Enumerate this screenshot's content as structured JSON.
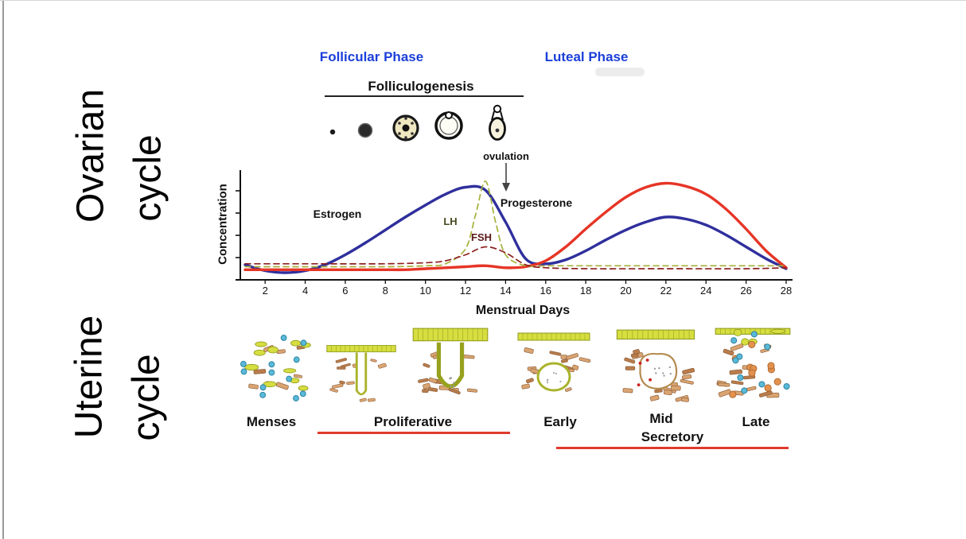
{
  "side_labels": {
    "ovarian_word1": "Ovarian",
    "ovarian_word2": "cycle",
    "uterine_word1": "Uterine",
    "uterine_word2": "cycle"
  },
  "phases": {
    "follicular": "Follicular Phase",
    "luteal": "Luteal Phase",
    "color": "#1b3fd9"
  },
  "folliculogenesis": {
    "title": "Folliculogenesis",
    "ovulation_label": "ovulation",
    "icons": [
      "primordial-follicle-icon",
      "primary-follicle-icon",
      "secondary-follicle-icon",
      "antral-follicle-icon",
      "ovulating-follicle-icon"
    ]
  },
  "chart": {
    "ylabel": "Concentration",
    "xlabel": "Menstrual Days",
    "labels": {
      "estrogen": "Estrogen",
      "lh": "LH",
      "fsh": "FSH",
      "progesterone": "Progesterone"
    }
  },
  "chart_data": {
    "type": "line",
    "xlabel": "Menstrual Days",
    "ylabel": "Concentration",
    "x_range": [
      1,
      28
    ],
    "x_ticks": [
      2,
      4,
      6,
      8,
      10,
      12,
      14,
      16,
      18,
      20,
      22,
      24,
      26,
      28
    ],
    "legend_position": "inline-labels",
    "grid": false,
    "series": [
      {
        "name": "Estrogen",
        "color": "#2f2f9d",
        "style": "solid",
        "x": [
          1,
          2,
          3,
          4,
          5,
          6,
          7,
          8,
          9,
          10,
          11,
          12,
          13,
          14,
          15,
          16,
          17,
          18,
          19,
          20,
          21,
          22,
          23,
          24,
          25,
          26,
          27,
          28
        ],
        "y": [
          12,
          6,
          4,
          6,
          12,
          22,
          34,
          47,
          60,
          72,
          83,
          90,
          87,
          55,
          18,
          13,
          17,
          26,
          37,
          47,
          55,
          60,
          58,
          52,
          42,
          30,
          18,
          8
        ]
      },
      {
        "name": "Progesterone",
        "color": "#e63526",
        "style": "solid",
        "x": [
          1,
          2,
          3,
          4,
          5,
          6,
          7,
          8,
          9,
          10,
          11,
          12,
          13,
          14,
          15,
          16,
          17,
          18,
          19,
          20,
          21,
          22,
          23,
          24,
          25,
          26,
          27,
          28
        ],
        "y": [
          7,
          7,
          7,
          7,
          7,
          7,
          7,
          7,
          7,
          8,
          9,
          10,
          11,
          9,
          10,
          16,
          30,
          48,
          65,
          80,
          90,
          94,
          91,
          83,
          68,
          48,
          26,
          9
        ]
      },
      {
        "name": "LH",
        "color": "#a6b13b",
        "style": "dashed",
        "x": [
          1,
          4,
          8,
          10,
          11,
          12,
          12.5,
          13,
          13.5,
          14,
          15,
          16,
          18,
          22,
          26,
          28
        ],
        "y": [
          10,
          10,
          10,
          11,
          13,
          28,
          62,
          96,
          55,
          22,
          11,
          11,
          11,
          11,
          11,
          11
        ]
      },
      {
        "name": "FSH",
        "color": "#8e1f1f",
        "style": "dashed",
        "x": [
          1,
          4,
          8,
          10,
          11,
          12,
          13,
          14,
          15,
          16,
          18,
          22,
          26,
          28
        ],
        "y": [
          13,
          13,
          13,
          14,
          16,
          22,
          30,
          24,
          12,
          9,
          8,
          8,
          8,
          9
        ]
      }
    ]
  },
  "uterine": {
    "stages": [
      "Menses",
      "Proliferative",
      "Early",
      "Mid",
      "Late"
    ],
    "secretory_label": "Secretory",
    "underline_color": "#e03a2c"
  }
}
